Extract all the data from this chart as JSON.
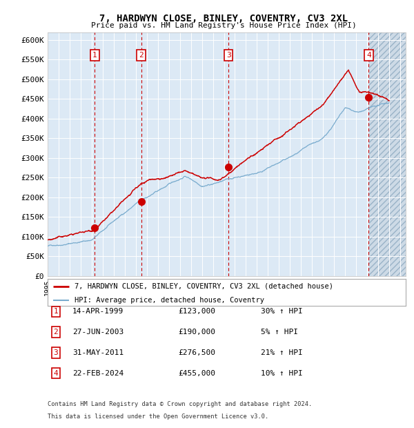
{
  "title": "7, HARDWYN CLOSE, BINLEY, COVENTRY, CV3 2XL",
  "subtitle": "Price paid vs. HM Land Registry's House Price Index (HPI)",
  "background_color": "#ffffff",
  "plot_bg_color": "#dce9f5",
  "grid_color": "#ffffff",
  "sale_color": "#cc0000",
  "hpi_color": "#7aacce",
  "ylim": [
    0,
    620000
  ],
  "yticks": [
    0,
    50000,
    100000,
    150000,
    200000,
    250000,
    300000,
    350000,
    400000,
    450000,
    500000,
    550000,
    600000
  ],
  "ytick_labels": [
    "£0",
    "£50K",
    "£100K",
    "£150K",
    "£200K",
    "£250K",
    "£300K",
    "£350K",
    "£400K",
    "£450K",
    "£500K",
    "£550K",
    "£600K"
  ],
  "xlim_start": 1995.0,
  "xlim_end": 2027.5,
  "future_start": 2024.2,
  "sale_dates": [
    1999.286,
    2003.486,
    2011.413,
    2024.141
  ],
  "sale_prices": [
    123000,
    190000,
    276500,
    455000
  ],
  "sale_labels": [
    "1",
    "2",
    "3",
    "4"
  ],
  "sale_hpi_pct": [
    "30% ↑ HPI",
    "5% ↑ HPI",
    "21% ↑ HPI",
    "10% ↑ HPI"
  ],
  "sale_date_str": [
    "14-APR-1999",
    "27-JUN-2003",
    "31-MAY-2011",
    "22-FEB-2024"
  ],
  "sale_prices_str": [
    "£123,000",
    "£190,000",
    "£276,500",
    "£455,000"
  ],
  "legend_line1": "7, HARDWYN CLOSE, BINLEY, COVENTRY, CV3 2XL (detached house)",
  "legend_line2": "HPI: Average price, detached house, Coventry",
  "footer1": "Contains HM Land Registry data © Crown copyright and database right 2024.",
  "footer2": "This data is licensed under the Open Government Licence v3.0."
}
